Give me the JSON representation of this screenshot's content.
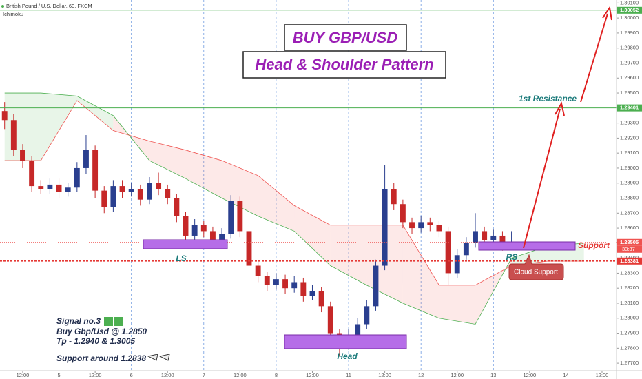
{
  "header": {
    "symbol": "British Pound / U.S. Dollar, 60, FXCM",
    "indicator": "Ichimoku"
  },
  "chart_data": {
    "type": "candlestick",
    "title": "BUY GBP/USD",
    "subtitle": "Head & Shoulder Pattern",
    "xlim": [
      -7.53,
      196.8
    ],
    "ylim": [
      1.2765,
      1.3012
    ],
    "xticks": [
      {
        "value": 0,
        "label": "12:00"
      },
      {
        "value": 24,
        "label": "12:00"
      },
      {
        "value": 48,
        "label": "12:00"
      },
      {
        "value": 72,
        "label": "12:00"
      },
      {
        "value": 96,
        "label": "12:00"
      },
      {
        "value": 120,
        "label": "12:00"
      },
      {
        "value": 144,
        "label": "12:00"
      },
      {
        "value": 168,
        "label": "12:00"
      },
      {
        "value": 192,
        "label": "12:00"
      }
    ],
    "day_ticks": [
      {
        "value": 12,
        "label": "5"
      },
      {
        "value": 36,
        "label": "6"
      },
      {
        "value": 60,
        "label": "7"
      },
      {
        "value": 84,
        "label": "8"
      },
      {
        "value": 108,
        "label": "11"
      },
      {
        "value": 132,
        "label": "12"
      },
      {
        "value": 156,
        "label": "13"
      },
      {
        "value": 180,
        "label": "14"
      }
    ],
    "yticks": [
      {
        "value": 1.277,
        "label": "1.27700"
      },
      {
        "value": 1.278,
        "label": "1.27800"
      },
      {
        "value": 1.279,
        "label": "1.27900"
      },
      {
        "value": 1.28,
        "label": "1.28000"
      },
      {
        "value": 1.281,
        "label": "1.28100"
      },
      {
        "value": 1.282,
        "label": "1.28200"
      },
      {
        "value": 1.283,
        "label": "1.28300"
      },
      {
        "value": 1.284,
        "label": "1.28400"
      },
      {
        "value": 1.285,
        "label": "1.28500"
      },
      {
        "value": 1.286,
        "label": "1.28600"
      },
      {
        "value": 1.287,
        "label": "1.28700"
      },
      {
        "value": 1.288,
        "label": "1.28800"
      },
      {
        "value": 1.289,
        "label": "1.28900"
      },
      {
        "value": 1.29,
        "label": "1.29000"
      },
      {
        "value": 1.291,
        "label": "1.29100"
      },
      {
        "value": 1.292,
        "label": "1.29200"
      },
      {
        "value": 1.293,
        "label": "1.29300"
      },
      {
        "value": 1.294,
        "label": "1.29400"
      },
      {
        "value": 1.295,
        "label": "1.29500"
      },
      {
        "value": 1.296,
        "label": "1.29600"
      },
      {
        "value": 1.297,
        "label": "1.29700"
      },
      {
        "value": 1.298,
        "label": "1.29800"
      },
      {
        "value": 1.299,
        "label": "1.29900"
      },
      {
        "value": 1.3,
        "label": "1.30000"
      },
      {
        "value": 1.301,
        "label": "1.30100"
      }
    ],
    "up_color": "#2a3f8f",
    "down_color": "#c62828",
    "ohlc": {
      "x": [
        -6,
        -3,
        0,
        3,
        6,
        9,
        12,
        15,
        18,
        21,
        24,
        27,
        30,
        33,
        36,
        39,
        42,
        45,
        48,
        51,
        54,
        57,
        60,
        63,
        66,
        69,
        72,
        75,
        78,
        81,
        84,
        87,
        90,
        93,
        96,
        99,
        102,
        105,
        108,
        111,
        114,
        117,
        120,
        123,
        126,
        129,
        132,
        135,
        138,
        141,
        144,
        147,
        150,
        153,
        156,
        159,
        162
      ],
      "open": [
        1.2938,
        1.2932,
        1.2912,
        1.2905,
        1.2888,
        1.2886,
        1.2889,
        1.2884,
        1.2887,
        1.29,
        1.2912,
        1.2885,
        1.2874,
        1.2888,
        1.2884,
        1.2886,
        1.2879,
        1.289,
        1.2886,
        1.288,
        1.2868,
        1.2855,
        1.2862,
        1.2858,
        1.285,
        1.2856,
        1.2878,
        1.2858,
        1.2835,
        1.2828,
        1.2822,
        1.2826,
        1.282,
        1.2824,
        1.2815,
        1.2818,
        1.2808,
        1.279,
        1.2782,
        1.2789,
        1.2796,
        1.2808,
        1.2835,
        1.2886,
        1.2876,
        1.2864,
        1.286,
        1.2864,
        1.2862,
        1.2858,
        1.283,
        1.2842,
        1.285,
        1.2858,
        1.2852,
        1.2855,
        1.2849
      ],
      "high": [
        1.2944,
        1.2936,
        1.2916,
        1.2908,
        1.2892,
        1.2893,
        1.2893,
        1.289,
        1.2904,
        1.2922,
        1.2915,
        1.2888,
        1.2892,
        1.2892,
        1.289,
        1.2889,
        1.2894,
        1.2897,
        1.2889,
        1.2883,
        1.2871,
        1.2866,
        1.2865,
        1.2861,
        1.286,
        1.2882,
        1.2881,
        1.2861,
        1.2838,
        1.2831,
        1.283,
        1.2829,
        1.2828,
        1.2827,
        1.2822,
        1.2821,
        1.2811,
        1.2793,
        1.2793,
        1.28,
        1.2812,
        1.2839,
        1.2902,
        1.289,
        1.2879,
        1.2867,
        1.2868,
        1.2867,
        1.2865,
        1.2861,
        1.2846,
        1.2854,
        1.287,
        1.2861,
        1.2859,
        1.2858,
        1.2858
      ],
      "low": [
        1.2926,
        1.2908,
        1.29,
        1.2884,
        1.2883,
        1.2883,
        1.288,
        1.2881,
        1.2884,
        1.2896,
        1.288,
        1.287,
        1.2871,
        1.288,
        1.2881,
        1.2875,
        1.2876,
        1.2882,
        1.2876,
        1.2864,
        1.2851,
        1.2852,
        1.2854,
        1.2847,
        1.2847,
        1.2853,
        1.2854,
        1.2805,
        1.2824,
        1.2818,
        1.2819,
        1.2816,
        1.2817,
        1.2811,
        1.2812,
        1.2804,
        1.2786,
        1.2775,
        1.2779,
        1.2786,
        1.2793,
        1.2805,
        1.2832,
        1.2872,
        1.286,
        1.2856,
        1.2857,
        1.2858,
        1.2854,
        1.2822,
        1.2827,
        1.2839,
        1.2847,
        1.2848,
        1.2849,
        1.2845,
        1.2846
      ],
      "close": [
        1.2932,
        1.2912,
        1.2905,
        1.2888,
        1.2886,
        1.2889,
        1.2884,
        1.2887,
        1.29,
        1.2912,
        1.2885,
        1.2874,
        1.2888,
        1.2884,
        1.2886,
        1.2879,
        1.289,
        1.2886,
        1.288,
        1.2868,
        1.2855,
        1.2862,
        1.2858,
        1.285,
        1.2856,
        1.2878,
        1.2858,
        1.2835,
        1.2828,
        1.2822,
        1.2826,
        1.282,
        1.2824,
        1.2815,
        1.2818,
        1.2808,
        1.279,
        1.2782,
        1.2789,
        1.2796,
        1.2808,
        1.2835,
        1.2886,
        1.2876,
        1.2864,
        1.286,
        1.2864,
        1.2862,
        1.2858,
        1.283,
        1.2842,
        1.285,
        1.2858,
        1.2852,
        1.2855,
        1.2849,
        1.28505
      ]
    },
    "cloud": {
      "x": [
        -6,
        6,
        18,
        30,
        42,
        54,
        66,
        78,
        90,
        102,
        114,
        126,
        138,
        150,
        162,
        174,
        186
      ],
      "span_a": [
        1.295,
        1.295,
        1.2948,
        1.2935,
        1.2905,
        1.2893,
        1.288,
        1.2868,
        1.2858,
        1.2835,
        1.2822,
        1.281,
        1.28,
        1.2796,
        1.284,
        1.2848,
        1.285
      ],
      "span_b": [
        1.2905,
        1.2905,
        1.2945,
        1.2925,
        1.2918,
        1.2912,
        1.2905,
        1.2895,
        1.2875,
        1.2862,
        1.2862,
        1.2862,
        1.2822,
        1.2822,
        1.2835,
        1.2838,
        1.2838
      ],
      "color_a": "#4caf50",
      "color_b": "#ef5350"
    },
    "levels": [
      {
        "value": 1.30052,
        "color": "#4caf50",
        "style": "solid"
      },
      {
        "value": 1.29401,
        "color": "#4caf50",
        "style": "solid"
      },
      {
        "value": 1.28505,
        "color": "#ef5350",
        "style": "dotted",
        "sub_label": "33:37"
      },
      {
        "value": 1.28381,
        "color": "#e53935",
        "style": "dashed"
      }
    ],
    "annotations": {
      "ls": "LS",
      "head": "Head",
      "rs": "RS",
      "resistance": "1st Resistance",
      "support": "Support",
      "cloud_support": "Cloud Support",
      "notes": [
        "Signal no.3",
        "Buy Gbp/Usd @ 1.2850",
        "Tp - 1.2940 & 1.3005",
        "Support around 1.2838"
      ]
    }
  }
}
